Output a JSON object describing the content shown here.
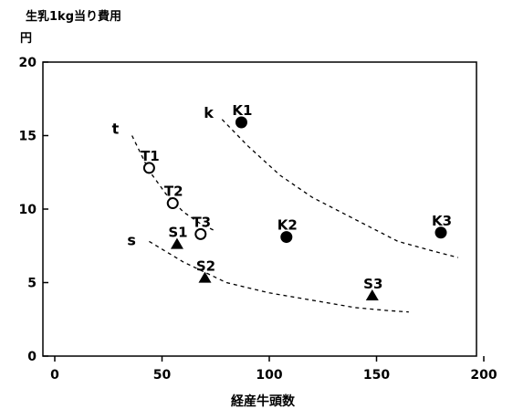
{
  "chart_data": {
    "type": "scatter",
    "title": "",
    "ylabel_line1": "生乳1kg当り費用",
    "ylabel_line2": "円",
    "xlabel": "経産牛頭数",
    "xlim": [
      0,
      200
    ],
    "ylim": [
      0,
      20
    ],
    "xticks": [
      "0",
      "50",
      "100",
      "150",
      "200"
    ],
    "yticks": [
      "0",
      "5",
      "10",
      "15",
      "20"
    ],
    "grid": false,
    "points": [
      {
        "label": "T1",
        "x": 44,
        "y": 12.8,
        "marker": "open-circle"
      },
      {
        "label": "T2",
        "x": 55,
        "y": 10.4,
        "marker": "open-circle"
      },
      {
        "label": "T3",
        "x": 68,
        "y": 8.3,
        "marker": "open-circle"
      },
      {
        "label": "S1",
        "x": 57,
        "y": 7.6,
        "marker": "triangle"
      },
      {
        "label": "S2",
        "x": 70,
        "y": 5.3,
        "marker": "triangle"
      },
      {
        "label": "S3",
        "x": 148,
        "y": 4.1,
        "marker": "triangle"
      },
      {
        "label": "K1",
        "x": 87,
        "y": 15.9,
        "marker": "filled-circle"
      },
      {
        "label": "K2",
        "x": 108,
        "y": 8.1,
        "marker": "filled-circle"
      },
      {
        "label": "K3",
        "x": 180,
        "y": 8.4,
        "marker": "filled-circle"
      }
    ],
    "curves": [
      {
        "name": "t",
        "x": [
          36,
          44,
          52,
          60,
          68,
          75
        ],
        "y": [
          15,
          12.6,
          11,
          9.8,
          9.0,
          8.5
        ]
      },
      {
        "name": "k",
        "x": [
          78,
          90,
          105,
          120,
          140,
          160,
          175,
          188
        ],
        "y": [
          16.1,
          14.3,
          12.3,
          10.8,
          9.3,
          7.8,
          7.2,
          6.7
        ]
      },
      {
        "name": "s",
        "x": [
          44,
          60,
          80,
          100,
          120,
          140,
          155,
          165
        ],
        "y": [
          7.8,
          6.4,
          5.0,
          4.3,
          3.8,
          3.3,
          3.1,
          3.0
        ]
      }
    ]
  }
}
